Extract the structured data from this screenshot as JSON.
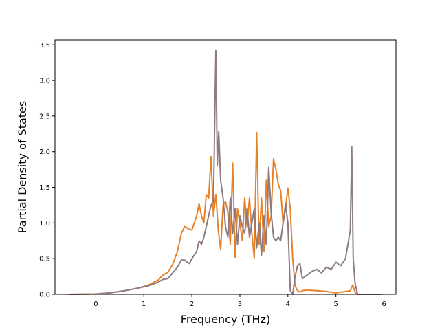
{
  "chart_data": {
    "type": "line",
    "title": "",
    "xlabel": "Frequency (THz)",
    "ylabel": "Partial Density of States",
    "xlim": [
      -0.85,
      6.25
    ],
    "ylim": [
      0,
      3.57
    ],
    "xticks": [
      0,
      1,
      2,
      3,
      4,
      5,
      6
    ],
    "yticks": [
      0.0,
      0.5,
      1.0,
      1.5,
      2.0,
      2.5,
      3.0,
      3.5
    ],
    "xtick_labels": [
      "0",
      "1",
      "2",
      "3",
      "4",
      "5",
      "6"
    ],
    "ytick_labels": [
      "0.0",
      "0.5",
      "1.0",
      "1.5",
      "2.0",
      "2.5",
      "3.0",
      "3.5"
    ],
    "grid": false,
    "legend": "none",
    "series": [
      {
        "color": "#e8822a",
        "x": [
          -0.57,
          0.0,
          0.3,
          0.6,
          0.9,
          1.1,
          1.3,
          1.4,
          1.5,
          1.6,
          1.7,
          1.78,
          1.85,
          1.9,
          1.95,
          2.0,
          2.05,
          2.1,
          2.15,
          2.2,
          2.25,
          2.3,
          2.35,
          2.4,
          2.45,
          2.5,
          2.55,
          2.6,
          2.65,
          2.7,
          2.75,
          2.8,
          2.85,
          2.9,
          2.95,
          3.0,
          3.05,
          3.1,
          3.15,
          3.2,
          3.25,
          3.3,
          3.35,
          3.4,
          3.45,
          3.5,
          3.55,
          3.6,
          3.65,
          3.7,
          3.75,
          3.8,
          3.85,
          3.9,
          3.95,
          4.0,
          4.05,
          4.1,
          4.15,
          4.2,
          4.25,
          4.3,
          4.4,
          4.6,
          4.8,
          5.0,
          5.2,
          5.3,
          5.35,
          5.4,
          5.45,
          5.5,
          5.96
        ],
        "y": [
          0.0,
          0.005,
          0.02,
          0.05,
          0.09,
          0.13,
          0.2,
          0.27,
          0.31,
          0.42,
          0.6,
          0.85,
          0.95,
          0.93,
          0.91,
          0.9,
          1.0,
          1.1,
          1.27,
          1.1,
          1.0,
          1.4,
          1.35,
          1.93,
          1.1,
          1.4,
          0.9,
          0.63,
          1.25,
          1.3,
          1.15,
          0.7,
          1.84,
          0.52,
          1.2,
          1.0,
          0.75,
          1.35,
          0.95,
          1.35,
          0.85,
          0.51,
          2.27,
          0.7,
          1.35,
          0.6,
          1.6,
          0.95,
          1.1,
          1.9,
          1.75,
          1.55,
          1.45,
          1.0,
          1.2,
          1.49,
          1.2,
          0.5,
          0.12,
          0.05,
          0.03,
          0.05,
          0.06,
          0.05,
          0.04,
          0.02,
          0.04,
          0.05,
          0.13,
          0.03,
          0.0,
          0.0,
          0.0
        ]
      },
      {
        "color": "#8c7b80",
        "x": [
          -0.57,
          0.0,
          0.3,
          0.6,
          0.9,
          1.1,
          1.3,
          1.4,
          1.5,
          1.6,
          1.7,
          1.78,
          1.85,
          1.9,
          1.95,
          2.0,
          2.05,
          2.1,
          2.15,
          2.2,
          2.25,
          2.3,
          2.35,
          2.4,
          2.45,
          2.5,
          2.53,
          2.56,
          2.6,
          2.65,
          2.7,
          2.75,
          2.8,
          2.85,
          2.9,
          2.95,
          3.0,
          3.05,
          3.1,
          3.15,
          3.2,
          3.25,
          3.3,
          3.35,
          3.4,
          3.45,
          3.5,
          3.55,
          3.6,
          3.65,
          3.7,
          3.75,
          3.8,
          3.85,
          3.9,
          3.95,
          4.0,
          4.05,
          4.1,
          4.15,
          4.2,
          4.25,
          4.3,
          4.35,
          4.4,
          4.5,
          4.6,
          4.7,
          4.8,
          4.9,
          5.0,
          5.1,
          5.2,
          5.25,
          5.3,
          5.33,
          5.36,
          5.4,
          5.45,
          5.5,
          5.96
        ],
        "y": [
          0.0,
          0.005,
          0.02,
          0.05,
          0.09,
          0.12,
          0.17,
          0.21,
          0.22,
          0.3,
          0.38,
          0.48,
          0.48,
          0.45,
          0.43,
          0.5,
          0.55,
          0.6,
          0.75,
          0.7,
          0.8,
          0.95,
          1.1,
          1.25,
          1.3,
          3.42,
          1.8,
          2.28,
          1.6,
          1.35,
          0.95,
          0.8,
          1.35,
          0.85,
          1.2,
          0.7,
          1.1,
          0.95,
          0.85,
          1.2,
          0.8,
          1.0,
          1.2,
          0.65,
          1.0,
          0.55,
          1.1,
          0.7,
          1.78,
          1.15,
          0.8,
          0.75,
          0.8,
          0.75,
          1.0,
          1.27,
          1.0,
          0.05,
          0.0,
          0.25,
          0.4,
          0.43,
          0.22,
          0.25,
          0.27,
          0.32,
          0.35,
          0.3,
          0.38,
          0.35,
          0.45,
          0.4,
          0.5,
          0.7,
          0.9,
          2.07,
          0.5,
          0.15,
          0.0,
          0.0,
          0.0
        ]
      }
    ]
  }
}
